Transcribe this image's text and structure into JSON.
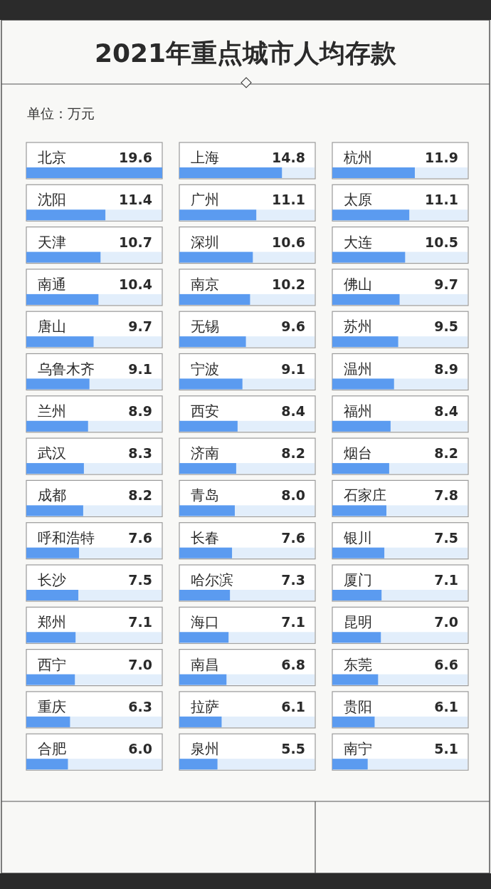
{
  "chart_data": [
    {
      "type": "bar",
      "orientation": "horizontal",
      "title": "2021年重点城市人均存款",
      "subtitle": "单位：万元",
      "color": "#5b9bf0",
      "xlim": [
        0,
        19.6
      ],
      "categories": [
        "北京",
        "沈阳",
        "天津",
        "南通",
        "唐山",
        "乌鲁木齐",
        "兰州",
        "武汉",
        "成都",
        "呼和浩特",
        "长沙",
        "郑州",
        "西宁",
        "重庆",
        "合肥"
      ],
      "values": [
        19.6,
        11.4,
        10.7,
        10.4,
        9.7,
        9.1,
        8.9,
        8.3,
        8.2,
        7.6,
        7.5,
        7.1,
        7.0,
        6.3,
        6.0
      ],
      "value_labels": [
        "19.6",
        "11.4",
        "10.7",
        "10.4",
        "9.7",
        "9.1",
        "8.9",
        "8.3",
        "8.2",
        "7.6",
        "7.5",
        "7.1",
        "7.0",
        "6.3",
        "6.0"
      ]
    },
    {
      "type": "bar",
      "orientation": "horizontal",
      "color": "#5b9bf0",
      "xlim": [
        0,
        19.6
      ],
      "categories": [
        "上海",
        "广州",
        "深圳",
        "南京",
        "无锡",
        "宁波",
        "西安",
        "济南",
        "青岛",
        "长春",
        "哈尔滨",
        "海口",
        "南昌",
        "拉萨",
        "泉州"
      ],
      "values": [
        14.8,
        11.1,
        10.6,
        10.2,
        9.6,
        9.1,
        8.4,
        8.2,
        8.0,
        7.6,
        7.3,
        7.1,
        6.8,
        6.1,
        5.5
      ],
      "value_labels": [
        "14.8",
        "11.1",
        "10.6",
        "10.2",
        "9.6",
        "9.1",
        "8.4",
        "8.2",
        "8.0",
        "7.6",
        "7.3",
        "7.1",
        "6.8",
        "6.1",
        "5.5"
      ]
    },
    {
      "type": "bar",
      "orientation": "horizontal",
      "color": "#5b9bf0",
      "xlim": [
        0,
        19.6
      ],
      "categories": [
        "杭州",
        "太原",
        "大连",
        "佛山",
        "苏州",
        "温州",
        "福州",
        "烟台",
        "石家庄",
        "银川",
        "厦门",
        "昆明",
        "东莞",
        "贵阳",
        "南宁"
      ],
      "values": [
        11.9,
        11.1,
        10.5,
        9.7,
        9.5,
        8.9,
        8.4,
        8.2,
        7.8,
        7.5,
        7.1,
        7.0,
        6.6,
        6.1,
        5.1
      ],
      "value_labels": [
        "11.9",
        "11.1",
        "10.5",
        "9.7",
        "9.5",
        "8.9",
        "8.4",
        "8.2",
        "7.8",
        "7.5",
        "7.1",
        "7.0",
        "6.6",
        "6.1",
        "5.1"
      ]
    }
  ]
}
